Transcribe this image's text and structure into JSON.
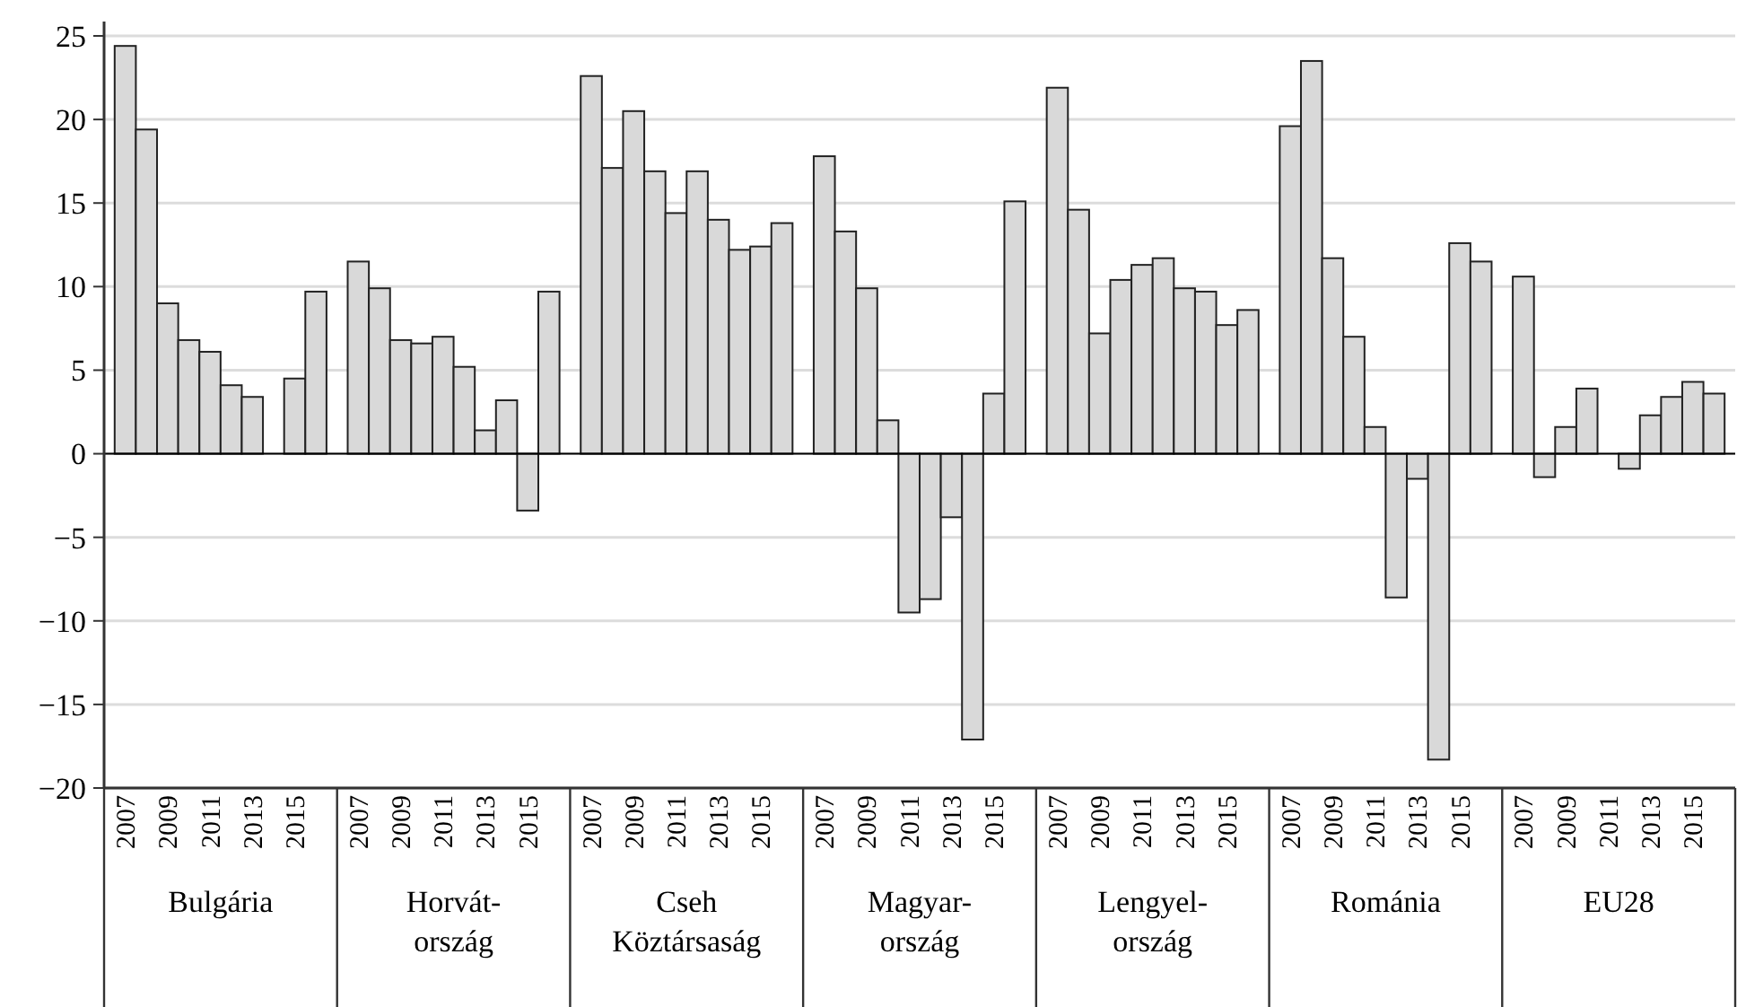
{
  "chart_data": {
    "type": "bar",
    "categories": [
      "2007",
      null,
      "2009",
      null,
      "2011",
      null,
      "2013",
      null,
      "2015",
      null,
      null,
      "2007",
      null,
      "2009",
      null,
      "2011",
      null,
      "2013",
      null,
      "2015",
      null,
      null,
      "2007",
      null,
      "2009",
      null,
      "2011",
      null,
      "2013",
      null,
      "2015",
      null,
      null,
      "2007",
      null,
      "2009",
      null,
      "2011",
      null,
      "2013",
      null,
      "2015",
      null,
      null,
      "2007",
      null,
      "2009",
      null,
      "2011",
      null,
      "2013",
      null,
      "2015",
      null,
      null,
      "2007",
      null,
      "2009",
      null,
      "2011",
      null,
      "2013",
      null,
      "2015",
      null,
      null,
      "2007",
      null,
      "2009",
      null,
      "2011",
      null,
      "2013",
      null,
      "2015",
      null
    ],
    "values": [
      24.4,
      19.4,
      9.0,
      6.8,
      6.1,
      4.1,
      3.4,
      null,
      4.5,
      9.7,
      null,
      11.5,
      9.9,
      6.8,
      6.6,
      7.0,
      5.2,
      1.4,
      3.2,
      -3.4,
      9.7,
      null,
      22.6,
      17.1,
      20.5,
      16.9,
      14.4,
      16.9,
      14.0,
      12.2,
      12.4,
      13.8,
      null,
      17.8,
      13.3,
      9.9,
      2.0,
      -9.5,
      -8.7,
      -3.8,
      -17.1,
      3.6,
      15.1,
      null,
      21.9,
      14.6,
      7.2,
      10.4,
      11.3,
      11.7,
      9.9,
      9.7,
      7.7,
      8.6,
      null,
      19.6,
      23.5,
      11.7,
      7.0,
      1.6,
      -8.6,
      -1.5,
      -18.3,
      12.6,
      11.5,
      null,
      10.6,
      -1.4,
      1.6,
      3.9,
      null,
      -0.9,
      2.3,
      3.4,
      4.3,
      3.6
    ],
    "color": "#d9d9d9",
    "annotations": [
      "Bulgária",
      "Horvát-\nország",
      "Cseh\nKöztársaság",
      "Magyar-\nország",
      "Lengyel-\nország",
      "Románia",
      "EU28"
    ],
    "ylim": [
      -20,
      25
    ],
    "yticks": [
      {
        "value": -20,
        "label": "−20"
      },
      {
        "value": -15,
        "label": "−15"
      },
      {
        "value": -10,
        "label": "−10"
      },
      {
        "value": -5,
        "label": "−5"
      },
      0,
      5,
      10,
      15,
      20,
      25
    ],
    "grid": "y"
  }
}
